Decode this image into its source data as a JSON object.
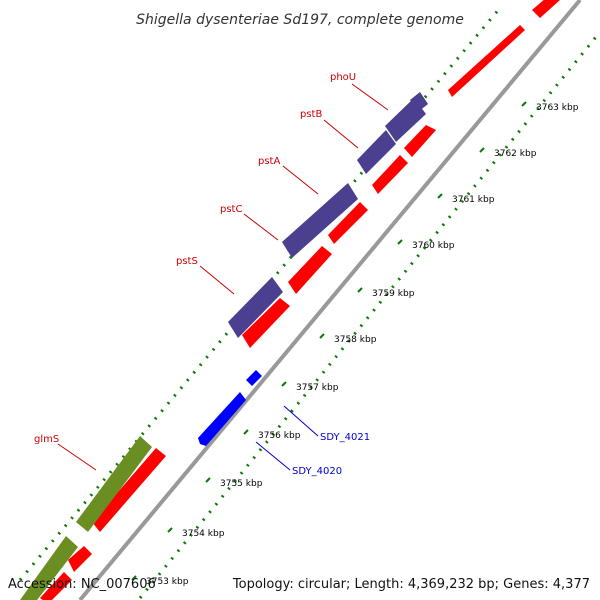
{
  "title": "Shigella dysenteriae Sd197, complete genome",
  "footer": {
    "accession": "Accession: NC_007606",
    "summary": "Topology: circular; Length: 4,369,232 bp; Genes: 4,377"
  },
  "colors": {
    "backbone": "#999999",
    "tick": "#0a7a0a",
    "cds": "#ff0000",
    "pst_operon": "#4b3f8f",
    "glms_gene": "#6b8e23",
    "sdy_gene": "#0000ff",
    "named_label": "#cc0000",
    "locus_label": "#0000cc"
  },
  "ticks": [
    {
      "label": "3753 kbp"
    },
    {
      "label": "3754 kbp"
    },
    {
      "label": "3755 kbp"
    },
    {
      "label": "3756 kbp"
    },
    {
      "label": "3757 kbp"
    },
    {
      "label": "3758 kbp"
    },
    {
      "label": "3759 kbp"
    },
    {
      "label": "3760 kbp"
    },
    {
      "label": "3761 kbp"
    },
    {
      "label": "3762 kbp"
    },
    {
      "label": "3763 kbp"
    }
  ],
  "genes": [
    {
      "name": "phoU"
    },
    {
      "name": "pstB"
    },
    {
      "name": "pstA"
    },
    {
      "name": "pstC"
    },
    {
      "name": "pstS"
    },
    {
      "name": "glmS"
    },
    {
      "name": "SDY_4021"
    },
    {
      "name": "SDY_4020"
    }
  ]
}
